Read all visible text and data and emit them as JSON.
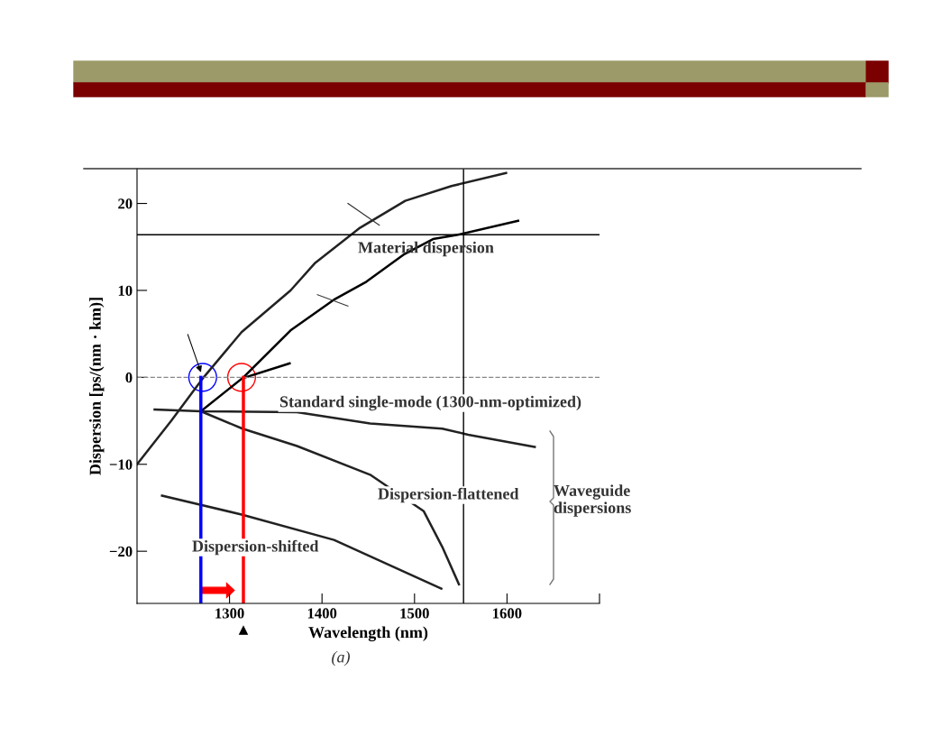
{
  "chart_data": {
    "type": "line",
    "xlabel": "Wavelength (nm)",
    "ylabel": "Dispersion [ps/(nm · km)]",
    "xlim": [
      1200,
      1700
    ],
    "ylim": [
      -26,
      24
    ],
    "xticks": [
      1300,
      1400,
      1500,
      1600,
      {
        "value": 1700,
        "label": null
      }
    ],
    "yticks": [
      {
        "value": -20,
        "label": "−20"
      },
      {
        "value": -10,
        "label": "−10"
      },
      0,
      10,
      20
    ],
    "grid": false,
    "legend": false,
    "marker": "none",
    "line_style": "solid",
    "series": [
      {
        "color": "#222222",
        "x": [
          1200,
          1237,
          1272,
          1313,
          1366,
          1392,
          1441,
          1490,
          1540,
          1599
        ],
        "values": [
          -10,
          -5,
          0,
          5.2,
          10,
          13.1,
          17.2,
          20.3,
          22,
          23.5
        ]
      },
      {
        "color": "#000000",
        "x": [
          1269,
          1315,
          1366,
          1414,
          1448,
          1488,
          1520,
          1547,
          1612
        ],
        "values": [
          -3.9,
          0,
          5.4,
          9.0,
          11,
          14.1,
          15.9,
          16.4,
          18.0
        ]
      },
      {
        "color": "#000000",
        "x": [
          1317,
          1365
        ],
        "values": [
          0,
          1.6
        ]
      },
      {
        "color": "#222222",
        "x": [
          1219,
          1269,
          1373,
          1452,
          1530,
          1558,
          1630
        ],
        "values": [
          -3.7,
          -3.9,
          -4.0,
          -5.3,
          -5.9,
          -6.6,
          -8.0
        ]
      },
      {
        "color": "#222222",
        "x": [
          1269,
          1314,
          1373,
          1452,
          1510,
          1530,
          1548
        ],
        "values": [
          -3.9,
          -5.9,
          -7.9,
          -11.2,
          -15.4,
          -19.5,
          -23.8
        ]
      },
      {
        "color": "#222222",
        "x": [
          1227,
          1314,
          1413,
          1529
        ],
        "values": [
          -13.6,
          -15.8,
          -18.7,
          -24.3
        ]
      }
    ],
    "ref_lines": [
      {
        "axis": "y",
        "value": 0,
        "color": "#888888",
        "line_style": "dashed"
      },
      {
        "axis": "y",
        "value": 16.4,
        "color": "#000000",
        "line_style": "solid"
      },
      {
        "axis": "x",
        "value": 1553,
        "color": "#000000",
        "line_style": "solid"
      },
      {
        "axis": "x",
        "value": 1269,
        "color": "#0000ff",
        "line_style": "solid"
      },
      {
        "axis": "x",
        "value": 1315,
        "color": "#ff0000",
        "line_style": "solid"
      }
    ],
    "annotations": [
      "Material dispersion",
      "Standard single-mode (1300-nm-optimized)",
      "Dispersion-flattened",
      "Dispersion-shifted",
      "Waveguide\ndispersions",
      "(a)"
    ]
  }
}
